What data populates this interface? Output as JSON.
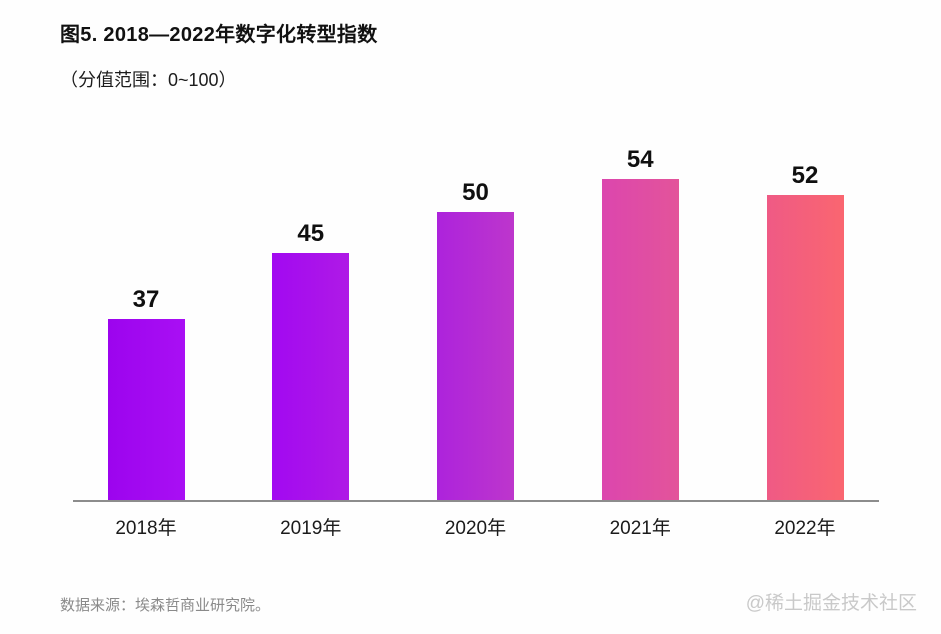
{
  "chart_data": {
    "type": "bar",
    "title": "图5. 2018—2022年数字化转型指数",
    "subtitle": "（分值范围：0~100）",
    "categories": [
      "2018年",
      "2019年",
      "2020年",
      "2021年",
      "2022年"
    ],
    "values": [
      37,
      45,
      50,
      54,
      52
    ],
    "xlabel": "",
    "ylabel": "",
    "ylim": [
      0,
      100
    ],
    "grid": false,
    "legend": false,
    "value_labels_shown": true,
    "axis_line_color": "#8c8c8c",
    "label_color": "#101010",
    "bar_gradients": [
      {
        "from": "#9c04ee",
        "to": "#a90ff4"
      },
      {
        "from": "#a209f1",
        "to": "#af1ae6"
      },
      {
        "from": "#ad23dc",
        "to": "#bd36cc"
      },
      {
        "from": "#dc46ae",
        "to": "#e3549a"
      },
      {
        "from": "#ef5a85",
        "to": "#fa6670"
      }
    ],
    "source": "数据来源：埃森哲商业研究院。",
    "watermark": "@稀土掘金技术社区"
  }
}
